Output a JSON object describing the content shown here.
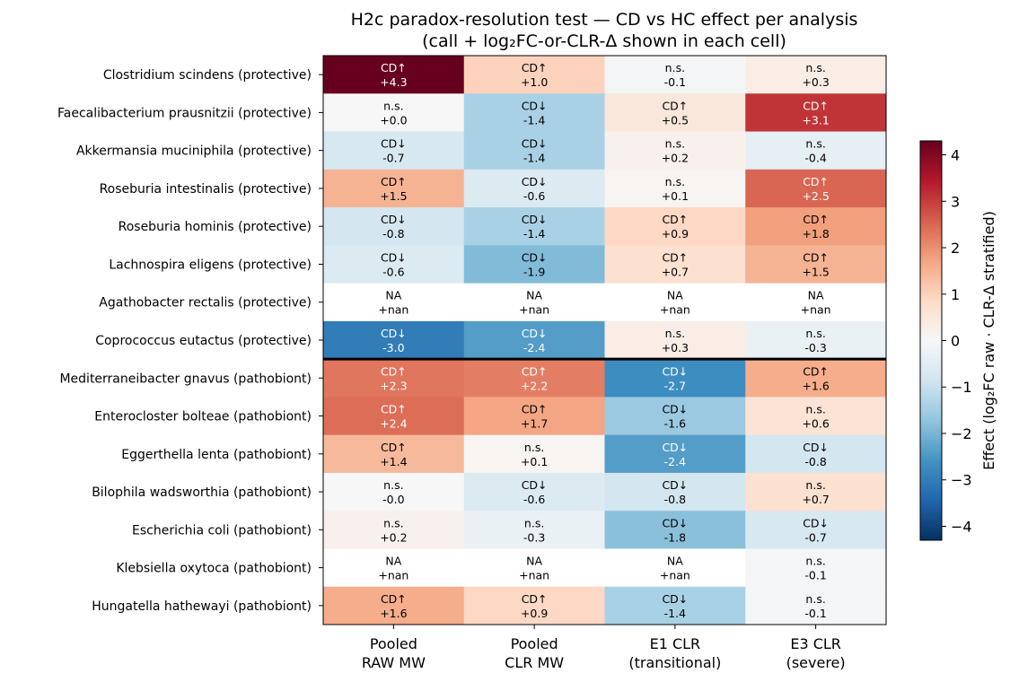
{
  "chart_data": {
    "type": "heatmap",
    "title": [
      "H2c paradox-resolution test — CD vs HC effect per analysis",
      "(call + log₂FC-or-CLR-Δ shown in each cell)"
    ],
    "rows": [
      "Clostridium scindens  (protective)",
      "Faecalibacterium prausnitzii  (protective)",
      "Akkermansia muciniphila  (protective)",
      "Roseburia intestinalis  (protective)",
      "Roseburia hominis  (protective)",
      "Lachnospira eligens  (protective)",
      "Agathobacter rectalis  (protective)",
      "Coprococcus eutactus  (protective)",
      "Mediterraneibacter gnavus  (pathobiont)",
      "Enterocloster bolteae  (pathobiont)",
      "Eggerthella lenta  (pathobiont)",
      "Bilophila wadsworthia  (pathobiont)",
      "Escherichia coli  (pathobiont)",
      "Klebsiella oxytoca  (pathobiont)",
      "Hungatella hathewayi  (pathobiont)"
    ],
    "columns": [
      [
        "Pooled",
        "RAW MW"
      ],
      [
        "Pooled",
        "CLR MW"
      ],
      [
        "E1 CLR",
        "(transitional)"
      ],
      [
        "E3 CLR",
        "(severe)"
      ]
    ],
    "cells": [
      [
        [
          "CD↑",
          "+4.3",
          4.3
        ],
        [
          "CD↑",
          "+1.0",
          1.0
        ],
        [
          "n.s.",
          "-0.1",
          -0.1
        ],
        [
          "n.s.",
          "+0.3",
          0.3
        ]
      ],
      [
        [
          "n.s.",
          "+0.0",
          0.0
        ],
        [
          "CD↓",
          "-1.4",
          -1.4
        ],
        [
          "CD↑",
          "+0.5",
          0.5
        ],
        [
          "CD↑",
          "+3.1",
          3.1
        ]
      ],
      [
        [
          "CD↓",
          "-0.7",
          -0.7
        ],
        [
          "CD↓",
          "-1.4",
          -1.4
        ],
        [
          "n.s.",
          "+0.2",
          0.2
        ],
        [
          "n.s.",
          "-0.4",
          -0.4
        ]
      ],
      [
        [
          "CD↑",
          "+1.5",
          1.5
        ],
        [
          "CD↓",
          "-0.6",
          -0.6
        ],
        [
          "n.s.",
          "+0.1",
          0.1
        ],
        [
          "CD↑",
          "+2.5",
          2.5
        ]
      ],
      [
        [
          "CD↓",
          "-0.8",
          -0.8
        ],
        [
          "CD↓",
          "-1.4",
          -1.4
        ],
        [
          "CD↑",
          "+0.9",
          0.9
        ],
        [
          "CD↑",
          "+1.8",
          1.8
        ]
      ],
      [
        [
          "CD↓",
          "-0.6",
          -0.6
        ],
        [
          "CD↓",
          "-1.9",
          -1.9
        ],
        [
          "CD↑",
          "+0.7",
          0.7
        ],
        [
          "CD↑",
          "+1.5",
          1.5
        ]
      ],
      [
        [
          "NA",
          "+nan",
          null
        ],
        [
          "NA",
          "+nan",
          null
        ],
        [
          "NA",
          "+nan",
          null
        ],
        [
          "NA",
          "+nan",
          null
        ]
      ],
      [
        [
          "CD↓",
          "-3.0",
          -3.0
        ],
        [
          "CD↓",
          "-2.4",
          -2.4
        ],
        [
          "n.s.",
          "+0.3",
          0.3
        ],
        [
          "n.s.",
          "-0.3",
          -0.3
        ]
      ],
      [
        [
          "CD↑",
          "+2.3",
          2.3
        ],
        [
          "CD↑",
          "+2.2",
          2.2
        ],
        [
          "CD↓",
          "-2.7",
          -2.7
        ],
        [
          "CD↑",
          "+1.6",
          1.6
        ]
      ],
      [
        [
          "CD↑",
          "+2.4",
          2.4
        ],
        [
          "CD↑",
          "+1.7",
          1.7
        ],
        [
          "CD↓",
          "-1.6",
          -1.6
        ],
        [
          "n.s.",
          "+0.6",
          0.6
        ]
      ],
      [
        [
          "CD↑",
          "+1.4",
          1.4
        ],
        [
          "n.s.",
          "+0.1",
          0.1
        ],
        [
          "CD↓",
          "-2.4",
          -2.4
        ],
        [
          "CD↓",
          "-0.8",
          -0.8
        ]
      ],
      [
        [
          "n.s.",
          "-0.0",
          0.0
        ],
        [
          "CD↓",
          "-0.6",
          -0.6
        ],
        [
          "CD↓",
          "-0.8",
          -0.8
        ],
        [
          "n.s.",
          "+0.7",
          0.7
        ]
      ],
      [
        [
          "n.s.",
          "+0.2",
          0.2
        ],
        [
          "n.s.",
          "-0.3",
          -0.3
        ],
        [
          "CD↓",
          "-1.8",
          -1.8
        ],
        [
          "CD↓",
          "-0.7",
          -0.7
        ]
      ],
      [
        [
          "NA",
          "+nan",
          null
        ],
        [
          "NA",
          "+nan",
          null
        ],
        [
          "NA",
          "+nan",
          null
        ],
        [
          "n.s.",
          "-0.1",
          -0.1
        ]
      ],
      [
        [
          "CD↑",
          "+1.6",
          1.6
        ],
        [
          "CD↑",
          "+0.9",
          0.9
        ],
        [
          "CD↓",
          "-1.4",
          -1.4
        ],
        [
          "n.s.",
          "-0.1",
          -0.1
        ]
      ]
    ],
    "group_separator_after_row": 8,
    "colorbar": {
      "label": "Effect (log₂FC raw · CLR-Δ stratified)",
      "range": [
        -4.3,
        4.3
      ],
      "ticks": [
        "4",
        "3",
        "2",
        "1",
        "0",
        "−1",
        "−2",
        "−3",
        "−4"
      ],
      "tick_values": [
        4,
        3,
        2,
        1,
        0,
        -1,
        -2,
        -3,
        -4
      ],
      "colormap": "RdBu_r"
    }
  }
}
